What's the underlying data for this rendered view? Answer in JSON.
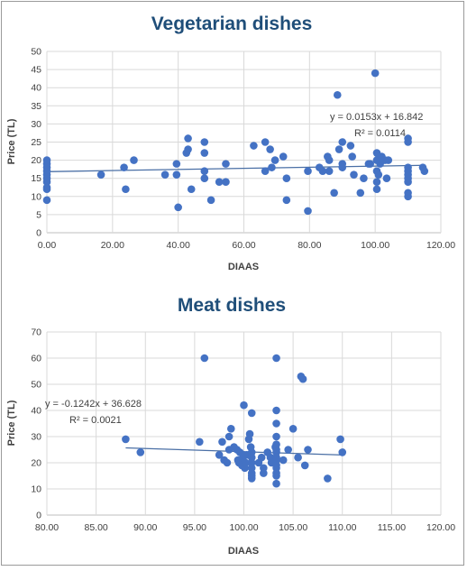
{
  "chart_data": [
    {
      "type": "scatter",
      "title": "Vegetarian dishes",
      "xlabel": "DIAAS",
      "ylabel": "Price (TL)",
      "xlim": [
        0,
        120
      ],
      "ylim": [
        0,
        50
      ],
      "xticks": [
        "0.00",
        "20.00",
        "40.00",
        "60.00",
        "80.00",
        "100.00",
        "120.00"
      ],
      "yticks": [
        "0",
        "5",
        "10",
        "15",
        "20",
        "25",
        "30",
        "35",
        "40",
        "45",
        "50"
      ],
      "grid": true,
      "point_color": "#4472c4",
      "trendline": {
        "slope": 0.0153,
        "intercept": 16.842,
        "equation": "y = 0.0153x + 16.842",
        "r2_label": "R² = 0.0114"
      },
      "points": [
        [
          0,
          9
        ],
        [
          0,
          12
        ],
        [
          0,
          12.5
        ],
        [
          0,
          14
        ],
        [
          0,
          15
        ],
        [
          0,
          16
        ],
        [
          0,
          17
        ],
        [
          0,
          18
        ],
        [
          0,
          19
        ],
        [
          0,
          20
        ],
        [
          16.5,
          16
        ],
        [
          23.5,
          18
        ],
        [
          24,
          12
        ],
        [
          26.5,
          20
        ],
        [
          36,
          16
        ],
        [
          39.5,
          16
        ],
        [
          39.5,
          19
        ],
        [
          40,
          7
        ],
        [
          42.5,
          22
        ],
        [
          43,
          23
        ],
        [
          43,
          26
        ],
        [
          44,
          12
        ],
        [
          48,
          25
        ],
        [
          48,
          22
        ],
        [
          48,
          17
        ],
        [
          48,
          15
        ],
        [
          50,
          9
        ],
        [
          52.5,
          14
        ],
        [
          54.5,
          14
        ],
        [
          54.5,
          19
        ],
        [
          63,
          24
        ],
        [
          66.5,
          25
        ],
        [
          66.5,
          17
        ],
        [
          68,
          23
        ],
        [
          68.5,
          18
        ],
        [
          69.5,
          20
        ],
        [
          72,
          21
        ],
        [
          73,
          15
        ],
        [
          73,
          9
        ],
        [
          79.5,
          17
        ],
        [
          79.5,
          6
        ],
        [
          83,
          18
        ],
        [
          84,
          17
        ],
        [
          85.5,
          21
        ],
        [
          86,
          17
        ],
        [
          86,
          20
        ],
        [
          87.5,
          11
        ],
        [
          88.5,
          38
        ],
        [
          89,
          23
        ],
        [
          90,
          25
        ],
        [
          90,
          19
        ],
        [
          90,
          18
        ],
        [
          92.5,
          24
        ],
        [
          93,
          21
        ],
        [
          93.5,
          16
        ],
        [
          95.5,
          11
        ],
        [
          96.5,
          15
        ],
        [
          98,
          19
        ],
        [
          98.5,
          19
        ],
        [
          100,
          44
        ],
        [
          100.5,
          22
        ],
        [
          100.5,
          20
        ],
        [
          100.5,
          17
        ],
        [
          100.5,
          14
        ],
        [
          100.5,
          12
        ],
        [
          101,
          16
        ],
        [
          101.5,
          19
        ],
        [
          102,
          21
        ],
        [
          103,
          20
        ],
        [
          103.5,
          15
        ],
        [
          104,
          20
        ],
        [
          110,
          26
        ],
        [
          110,
          25
        ],
        [
          110,
          18
        ],
        [
          110,
          17
        ],
        [
          110,
          16
        ],
        [
          110,
          15
        ],
        [
          110,
          14
        ],
        [
          110,
          11
        ],
        [
          110,
          10
        ],
        [
          114.5,
          18
        ],
        [
          115,
          17
        ]
      ]
    },
    {
      "type": "scatter",
      "title": "Meat dishes",
      "xlabel": "DIAAS",
      "ylabel": "Price (TL)",
      "xlim": [
        80,
        120
      ],
      "ylim": [
        0,
        70
      ],
      "xticks": [
        "80.00",
        "85.00",
        "90.00",
        "95.00",
        "100.00",
        "105.00",
        "110.00",
        "115.00",
        "120.00"
      ],
      "yticks": [
        "0",
        "10",
        "20",
        "30",
        "40",
        "50",
        "60",
        "70"
      ],
      "grid": true,
      "point_color": "#4472c4",
      "trendline": {
        "slope": -0.1242,
        "intercept": 36.628,
        "equation": "y = -0.1242x + 36.628",
        "r2_label": "R² = 0.0021"
      },
      "points": [
        [
          88,
          29
        ],
        [
          89.5,
          24
        ],
        [
          95.5,
          28
        ],
        [
          96,
          60
        ],
        [
          97.5,
          23
        ],
        [
          97.8,
          28
        ],
        [
          98,
          21
        ],
        [
          98.3,
          20
        ],
        [
          98.5,
          25
        ],
        [
          98.5,
          30
        ],
        [
          98.7,
          33
        ],
        [
          99,
          26
        ],
        [
          99.3,
          25
        ],
        [
          99.4,
          21
        ],
        [
          99.5,
          20
        ],
        [
          99.6,
          24
        ],
        [
          99.8,
          19
        ],
        [
          99.9,
          22
        ],
        [
          100,
          23
        ],
        [
          100,
          42
        ],
        [
          100.1,
          18
        ],
        [
          100.2,
          20
        ],
        [
          100.3,
          23
        ],
        [
          100.5,
          29
        ],
        [
          100.6,
          31
        ],
        [
          100.7,
          26
        ],
        [
          100.8,
          39
        ],
        [
          100.8,
          24
        ],
        [
          100.8,
          22
        ],
        [
          100.8,
          20
        ],
        [
          100.8,
          18
        ],
        [
          100.8,
          16
        ],
        [
          100.8,
          15
        ],
        [
          100.8,
          14
        ],
        [
          101.5,
          20
        ],
        [
          101.8,
          22
        ],
        [
          102,
          18
        ],
        [
          102,
          16
        ],
        [
          102.4,
          24
        ],
        [
          102.7,
          22
        ],
        [
          102.8,
          20
        ],
        [
          103,
          20
        ],
        [
          103.2,
          26
        ],
        [
          103.3,
          60
        ],
        [
          103.3,
          40
        ],
        [
          103.3,
          35
        ],
        [
          103.3,
          30
        ],
        [
          103.3,
          27
        ],
        [
          103.3,
          25
        ],
        [
          103.3,
          24
        ],
        [
          103.3,
          22
        ],
        [
          103.3,
          21
        ],
        [
          103.3,
          19
        ],
        [
          103.3,
          18
        ],
        [
          103.3,
          16
        ],
        [
          103.3,
          15
        ],
        [
          103.3,
          12
        ],
        [
          104,
          21
        ],
        [
          104.5,
          25
        ],
        [
          105,
          33
        ],
        [
          105.5,
          22
        ],
        [
          105.8,
          53
        ],
        [
          106,
          52
        ],
        [
          106.2,
          19
        ],
        [
          106.5,
          25
        ],
        [
          108.5,
          14
        ],
        [
          109.8,
          29
        ],
        [
          110,
          24
        ]
      ]
    }
  ]
}
